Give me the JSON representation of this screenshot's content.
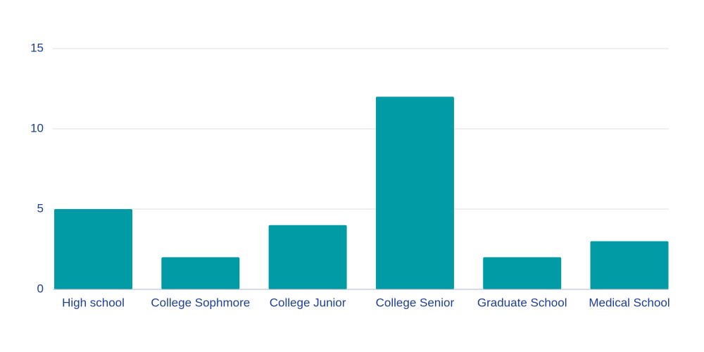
{
  "chart_data": {
    "type": "bar",
    "categories": [
      "High school",
      "College Sophmore",
      "College Junior",
      "College Senior",
      "Graduate School",
      "Medical School"
    ],
    "values": [
      5,
      2,
      4,
      12,
      2,
      3
    ],
    "color": "#009ba5",
    "ylim": [
      0,
      15
    ],
    "yticks": [
      0,
      5,
      10,
      15
    ],
    "grid": true
  }
}
